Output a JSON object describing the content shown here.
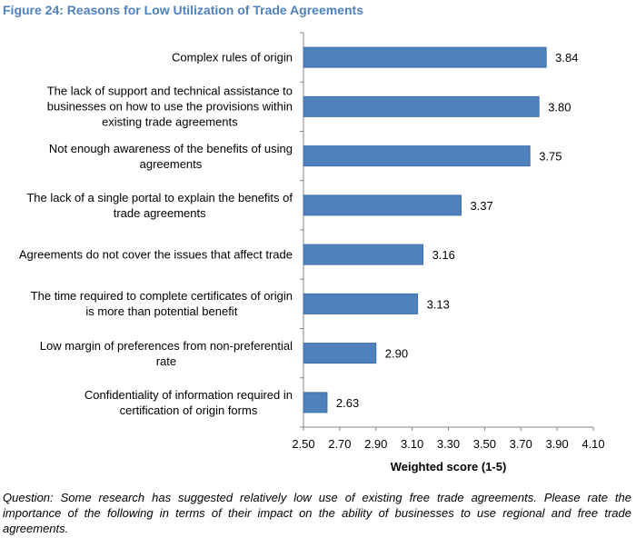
{
  "chart_data": {
    "type": "bar",
    "orientation": "horizontal",
    "title": "Figure 24: Reasons for Low Utilization of Trade Agreements",
    "categories": [
      [
        "Complex rules of origin"
      ],
      [
        "The lack of support and technical assistance to",
        "businesses on how to use the provisions within",
        "existing trade agreements"
      ],
      [
        "Not enough awareness of the benefits of using",
        "agreements"
      ],
      [
        "The lack of a single portal to explain the benefits of",
        "trade agreements"
      ],
      [
        "Agreements do not cover the issues that affect trade"
      ],
      [
        "The time required to complete certificates of origin",
        "is more than potential benefit"
      ],
      [
        "Low margin of preferences from non-preferential",
        "rate"
      ],
      [
        "Confidentiality of information required in",
        "certification of origin forms"
      ]
    ],
    "values": [
      3.84,
      3.8,
      3.75,
      3.37,
      3.16,
      3.13,
      2.9,
      2.63
    ],
    "value_labels": [
      "3.84",
      "3.80",
      "3.75",
      "3.37",
      "3.16",
      "3.13",
      "2.90",
      "2.63"
    ],
    "xlabel": "Weighted score (1-5)",
    "xlim": [
      2.5,
      4.1
    ],
    "xticks": [
      "2.50",
      "2.70",
      "2.90",
      "3.10",
      "3.30",
      "3.50",
      "3.70",
      "3.90",
      "4.10"
    ],
    "grid": false,
    "legend": "none",
    "bar_color": "#4f81bd",
    "bar_border": "#3f6fa8",
    "title_color": "#4f81bd"
  },
  "footnote": "Question: Some research has suggested relatively low use of existing free trade agreements.  Please rate the importance of the following in terms of their impact on the ability of businesses to use regional and free trade agreements."
}
